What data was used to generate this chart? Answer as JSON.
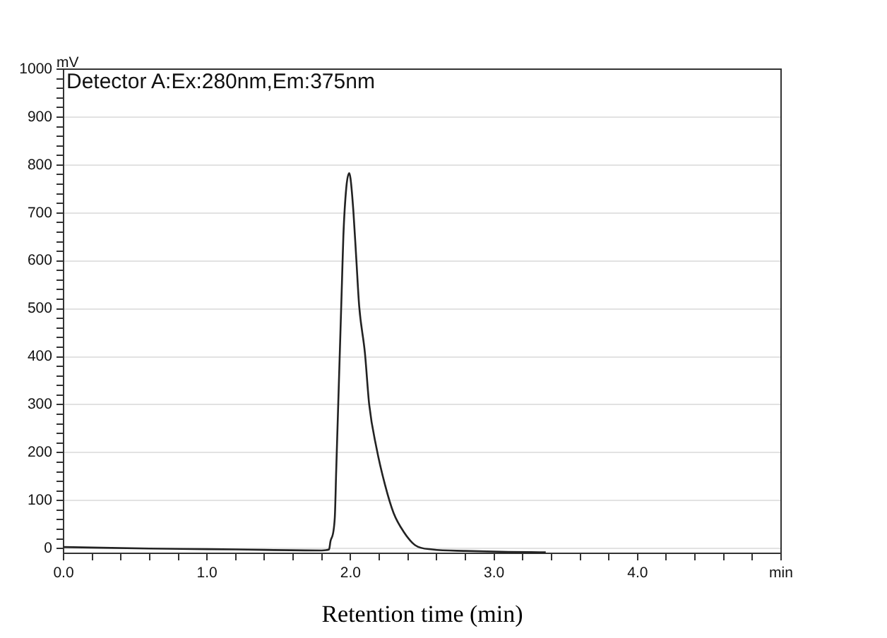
{
  "chart_data": {
    "type": "line",
    "xlabel": "Retention time (min)",
    "ylabel": "mV",
    "annotations": [
      "Detector A:Ex:280nm,Em:375nm"
    ],
    "x": [
      0,
      0.6,
      1.2,
      1.8,
      1.85,
      1.86,
      1.89,
      1.9,
      1.91,
      1.92,
      1.93,
      1.94,
      1.95,
      1.97,
      1.99,
      2.0,
      2.02,
      2.04,
      2.06,
      2.1,
      2.13,
      2.18,
      2.24,
      2.3,
      2.37,
      2.45,
      2.57,
      2.8,
      3.1,
      3.36
    ],
    "values": [
      3,
      0,
      -2,
      -4,
      -2,
      15,
      64,
      163,
      261,
      359,
      457,
      555,
      653,
      752,
      783,
      771,
      702,
      604,
      506,
      408,
      300,
      211,
      133,
      74,
      35,
      7,
      -2,
      -5,
      -7,
      -8
    ],
    "color": "#222222",
    "xlim": [
      0,
      5
    ],
    "xticks": [
      {
        "value": 0,
        "label": "0.0"
      },
      {
        "value": 0.2,
        "label": null
      },
      {
        "value": 0.4,
        "label": null
      },
      {
        "value": 0.6,
        "label": null
      },
      {
        "value": 0.8,
        "label": null
      },
      {
        "value": 1,
        "label": "1.0"
      },
      {
        "value": 1.2,
        "label": null
      },
      {
        "value": 1.4,
        "label": null
      },
      {
        "value": 1.6,
        "label": null
      },
      {
        "value": 1.8,
        "label": null
      },
      {
        "value": 2,
        "label": "2.0"
      },
      {
        "value": 2.2,
        "label": null
      },
      {
        "value": 2.4,
        "label": null
      },
      {
        "value": 2.6,
        "label": null
      },
      {
        "value": 2.8,
        "label": null
      },
      {
        "value": 3,
        "label": "3.0"
      },
      {
        "value": 3.2,
        "label": null
      },
      {
        "value": 3.4,
        "label": null
      },
      {
        "value": 3.6,
        "label": null
      },
      {
        "value": 3.8,
        "label": null
      },
      {
        "value": 4,
        "label": "4.0"
      },
      {
        "value": 4.2,
        "label": null
      },
      {
        "value": 4.4,
        "label": null
      },
      {
        "value": 4.6,
        "label": null
      },
      {
        "value": 4.8,
        "label": null
      },
      {
        "value": 5,
        "label": "min"
      }
    ],
    "ylim": [
      -10,
      1000
    ],
    "yticks": [
      0,
      {
        "value": 20,
        "label": null
      },
      {
        "value": 40,
        "label": null
      },
      {
        "value": 60,
        "label": null
      },
      {
        "value": 80,
        "label": null
      },
      100,
      {
        "value": 120,
        "label": null
      },
      {
        "value": 140,
        "label": null
      },
      {
        "value": 160,
        "label": null
      },
      {
        "value": 180,
        "label": null
      },
      200,
      {
        "value": 220,
        "label": null
      },
      {
        "value": 240,
        "label": null
      },
      {
        "value": 260,
        "label": null
      },
      {
        "value": 280,
        "label": null
      },
      300,
      {
        "value": 320,
        "label": null
      },
      {
        "value": 340,
        "label": null
      },
      {
        "value": 360,
        "label": null
      },
      {
        "value": 380,
        "label": null
      },
      400,
      {
        "value": 420,
        "label": null
      },
      {
        "value": 440,
        "label": null
      },
      {
        "value": 460,
        "label": null
      },
      {
        "value": 480,
        "label": null
      },
      500,
      {
        "value": 520,
        "label": null
      },
      {
        "value": 540,
        "label": null
      },
      {
        "value": 560,
        "label": null
      },
      {
        "value": 580,
        "label": null
      },
      600,
      {
        "value": 620,
        "label": null
      },
      {
        "value": 640,
        "label": null
      },
      {
        "value": 660,
        "label": null
      },
      {
        "value": 680,
        "label": null
      },
      700,
      {
        "value": 720,
        "label": null
      },
      {
        "value": 740,
        "label": null
      },
      {
        "value": 760,
        "label": null
      },
      {
        "value": 780,
        "label": null
      },
      800,
      {
        "value": 820,
        "label": null
      },
      {
        "value": 840,
        "label": null
      },
      {
        "value": 860,
        "label": null
      },
      {
        "value": 880,
        "label": null
      },
      900,
      {
        "value": 920,
        "label": null
      },
      {
        "value": 940,
        "label": null
      },
      {
        "value": 960,
        "label": null
      },
      {
        "value": 980,
        "label": null
      },
      1000
    ],
    "grid": "y"
  }
}
